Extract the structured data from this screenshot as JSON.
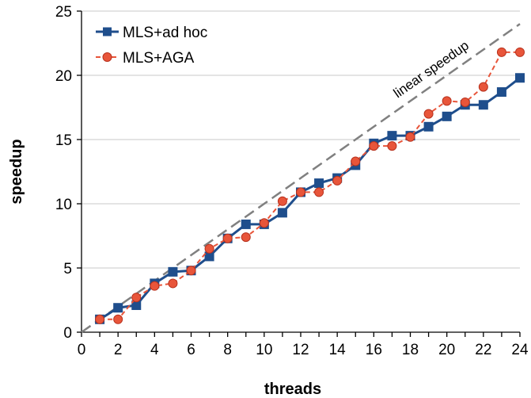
{
  "chart_data": {
    "type": "line",
    "title": "",
    "xlabel": "threads",
    "ylabel": "speedup",
    "xlim": [
      0,
      24
    ],
    "ylim": [
      0,
      25
    ],
    "xticks": [
      0,
      2,
      4,
      6,
      8,
      10,
      12,
      14,
      16,
      18,
      20,
      22,
      24
    ],
    "yticks": [
      0,
      5,
      10,
      15,
      20,
      25
    ],
    "grid": "horizontal",
    "legend_position": "top-left",
    "series": [
      {
        "name": "MLS+ad hoc",
        "color": "#1f4e8c",
        "marker": "square",
        "line_style": "solid",
        "x": [
          1,
          2,
          3,
          4,
          5,
          6,
          7,
          8,
          9,
          10,
          11,
          12,
          13,
          14,
          15,
          16,
          17,
          18,
          19,
          20,
          21,
          22,
          23,
          24
        ],
        "values": [
          1.0,
          1.9,
          2.1,
          3.8,
          4.7,
          4.8,
          5.9,
          7.3,
          8.4,
          8.4,
          9.3,
          10.9,
          11.6,
          12.0,
          13.0,
          14.7,
          15.3,
          15.3,
          16.0,
          16.8,
          17.7,
          17.7,
          18.7,
          19.8
        ]
      },
      {
        "name": "MLS+AGA",
        "color": "#e8553a",
        "marker": "circle",
        "line_style": "dashed",
        "x": [
          1,
          2,
          3,
          4,
          5,
          6,
          7,
          8,
          9,
          10,
          11,
          12,
          13,
          14,
          15,
          16,
          17,
          18,
          19,
          20,
          21,
          22,
          23,
          24
        ],
        "values": [
          1.0,
          1.0,
          2.7,
          3.6,
          3.8,
          4.8,
          6.5,
          7.3,
          7.4,
          8.5,
          10.2,
          10.9,
          10.9,
          11.8,
          13.3,
          14.5,
          14.5,
          15.2,
          17.0,
          18.0,
          17.9,
          19.1,
          21.8,
          21.8
        ]
      }
    ],
    "reference_line": {
      "label": "linear speedup",
      "color": "#808080",
      "line_style": "dashed",
      "x": [
        0,
        24
      ],
      "values": [
        0,
        24
      ]
    }
  }
}
